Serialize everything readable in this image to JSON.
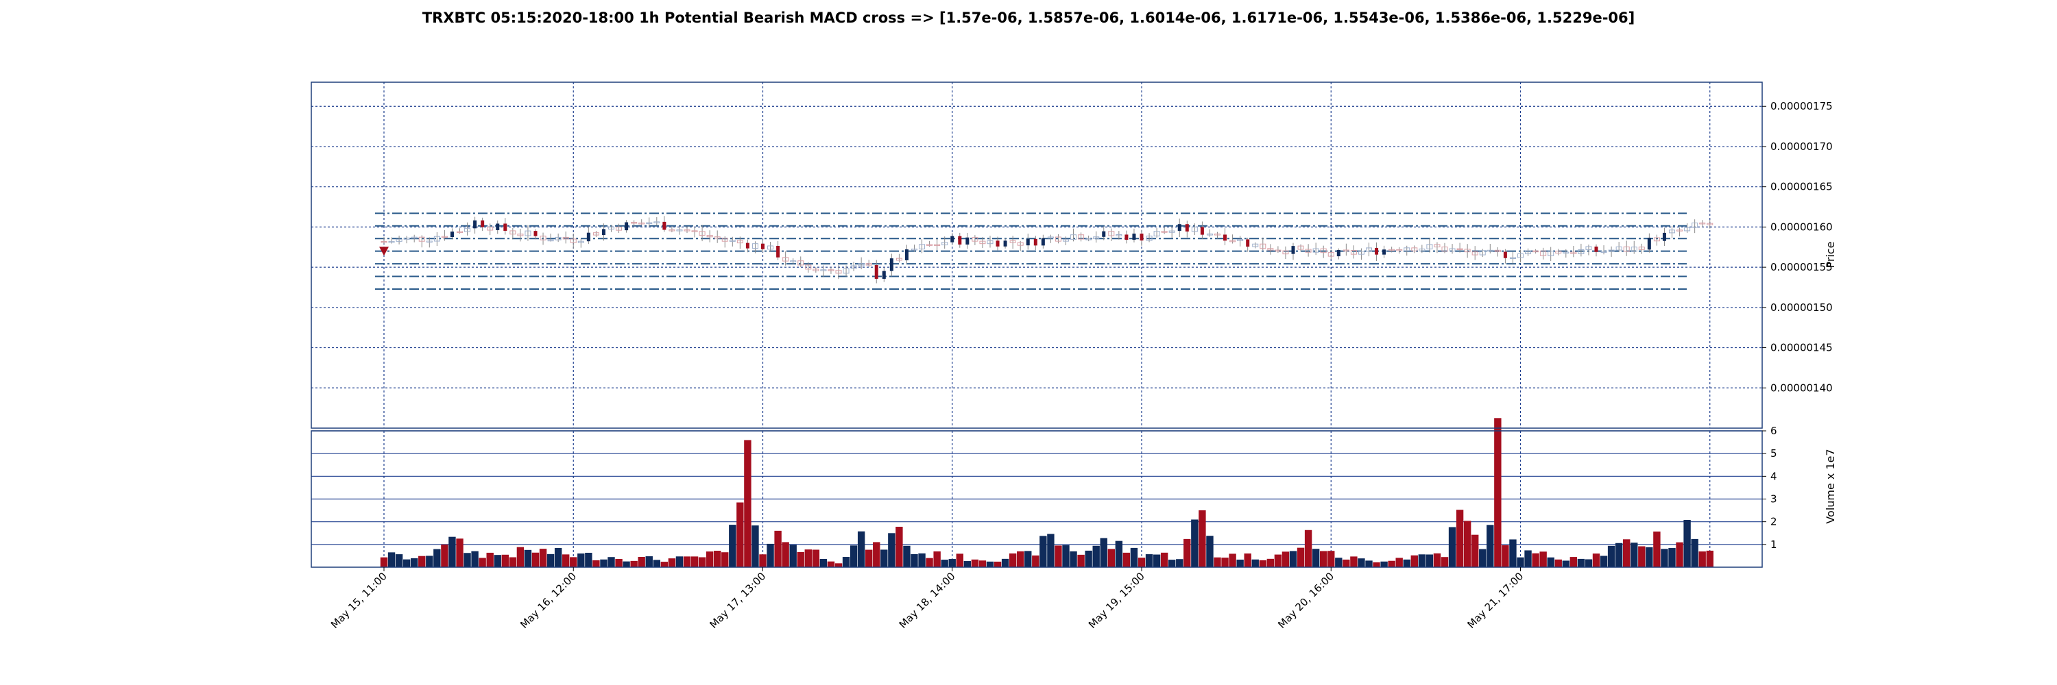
{
  "chart_data": {
    "type": "candlestick",
    "title": "TRXBTC 05:15:2020-18:00 1h Potential Bearish MACD cross => [1.57e-06, 1.5857e-06, 1.6014e-06, 1.6171e-06, 1.5543e-06, 1.5386e-06, 1.5229e-06]",
    "price_axis": {
      "label": "Price",
      "ylim": [
        1.35e-06,
        1.78e-06
      ],
      "ticks": [
        "0.00000140",
        "0.00000145",
        "0.00000150",
        "0.00000155",
        "0.00000160",
        "0.00000165",
        "0.00000170",
        "0.00000175"
      ],
      "tick_values": [
        1.4e-06,
        1.45e-06,
        1.5e-06,
        1.55e-06,
        1.6e-06,
        1.65e-06,
        1.7e-06,
        1.75e-06
      ]
    },
    "volume_axis": {
      "label": "Volume x 1e7",
      "ylim": [
        0,
        6
      ],
      "ticks": [
        "1",
        "2",
        "3",
        "4",
        "5",
        "6"
      ],
      "tick_values": [
        1,
        2,
        3,
        4,
        5,
        6
      ]
    },
    "x_axis": {
      "tick_labels": [
        "May 15, 11:00",
        "May 16, 12:00",
        "May 17, 13:00",
        "May 18, 14:00",
        "May 19, 15:00",
        "May 20, 16:00",
        "May 21, 17:00"
      ],
      "tick_index": [
        0,
        25,
        50,
        75,
        100,
        125,
        150
      ]
    },
    "levels": [
      1.57e-06,
      1.5857e-06,
      1.6014e-06,
      1.6171e-06,
      1.5543e-06,
      1.5386e-06,
      1.5229e-06
    ],
    "signal": {
      "type": "bearish-marker",
      "index": 0,
      "price": 1.5695e-06
    },
    "colors": {
      "up": "#0f2b5b",
      "down": "#a50e1e",
      "grid": "#1f3f8f",
      "level": "#2a5a8a",
      "signal": "#a50e1e"
    },
    "price_keyframes": [
      [
        0,
        1.582
      ],
      [
        6,
        1.587
      ],
      [
        10,
        1.596
      ],
      [
        12,
        1.607
      ],
      [
        16,
        1.596
      ],
      [
        20,
        1.588
      ],
      [
        25,
        1.585
      ],
      [
        30,
        1.6
      ],
      [
        35,
        1.606
      ],
      [
        40,
        1.595
      ],
      [
        45,
        1.583
      ],
      [
        50,
        1.576
      ],
      [
        52,
        1.566
      ],
      [
        55,
        1.548
      ],
      [
        60,
        1.547
      ],
      [
        63,
        1.55
      ],
      [
        64,
        1.549
      ],
      [
        65,
        1.54
      ],
      [
        67,
        1.556
      ],
      [
        70,
        1.572
      ],
      [
        75,
        1.584
      ],
      [
        80,
        1.582
      ],
      [
        85,
        1.581
      ],
      [
        90,
        1.59
      ],
      [
        95,
        1.59
      ],
      [
        100,
        1.588
      ],
      [
        105,
        1.598
      ],
      [
        110,
        1.592
      ],
      [
        115,
        1.577
      ],
      [
        120,
        1.571
      ],
      [
        125,
        1.565
      ],
      [
        130,
        1.57
      ],
      [
        135,
        1.576
      ],
      [
        140,
        1.573
      ],
      [
        145,
        1.565
      ],
      [
        150,
        1.567
      ],
      [
        155,
        1.57
      ],
      [
        160,
        1.57
      ],
      [
        165,
        1.573
      ],
      [
        168,
        1.587
      ],
      [
        172,
        1.597
      ],
      [
        174,
        1.603
      ]
    ],
    "volume_keyframes": [
      [
        0,
        0.6
      ],
      [
        5,
        0.4
      ],
      [
        8,
        1.4
      ],
      [
        12,
        0.7
      ],
      [
        15,
        0.6
      ],
      [
        20,
        0.8
      ],
      [
        25,
        0.6
      ],
      [
        30,
        0.5
      ],
      [
        35,
        0.4
      ],
      [
        40,
        0.4
      ],
      [
        45,
        0.7
      ],
      [
        47,
        2.7
      ],
      [
        48,
        4.5
      ],
      [
        50,
        1.0
      ],
      [
        52,
        1.5
      ],
      [
        55,
        1.0
      ],
      [
        60,
        0.3
      ],
      [
        63,
        1.3
      ],
      [
        65,
        0.9
      ],
      [
        68,
        1.7
      ],
      [
        70,
        0.7
      ],
      [
        75,
        0.5
      ],
      [
        80,
        0.4
      ],
      [
        85,
        0.6
      ],
      [
        88,
        1.4
      ],
      [
        92,
        0.7
      ],
      [
        95,
        1.2
      ],
      [
        100,
        0.7
      ],
      [
        105,
        0.5
      ],
      [
        108,
        2.6
      ],
      [
        110,
        0.6
      ],
      [
        115,
        0.5
      ],
      [
        120,
        0.7
      ],
      [
        122,
        1.5
      ],
      [
        125,
        0.6
      ],
      [
        130,
        0.3
      ],
      [
        135,
        0.5
      ],
      [
        140,
        0.7
      ],
      [
        142,
        2.5
      ],
      [
        145,
        0.8
      ],
      [
        147,
        5.5
      ],
      [
        148,
        1.5
      ],
      [
        150,
        0.7
      ],
      [
        155,
        0.5
      ],
      [
        160,
        0.6
      ],
      [
        163,
        1.0
      ],
      [
        165,
        1.0
      ],
      [
        168,
        1.5
      ],
      [
        170,
        1.0
      ],
      [
        172,
        1.9
      ],
      [
        175,
        0.6
      ]
    ],
    "n_candles": 176
  }
}
